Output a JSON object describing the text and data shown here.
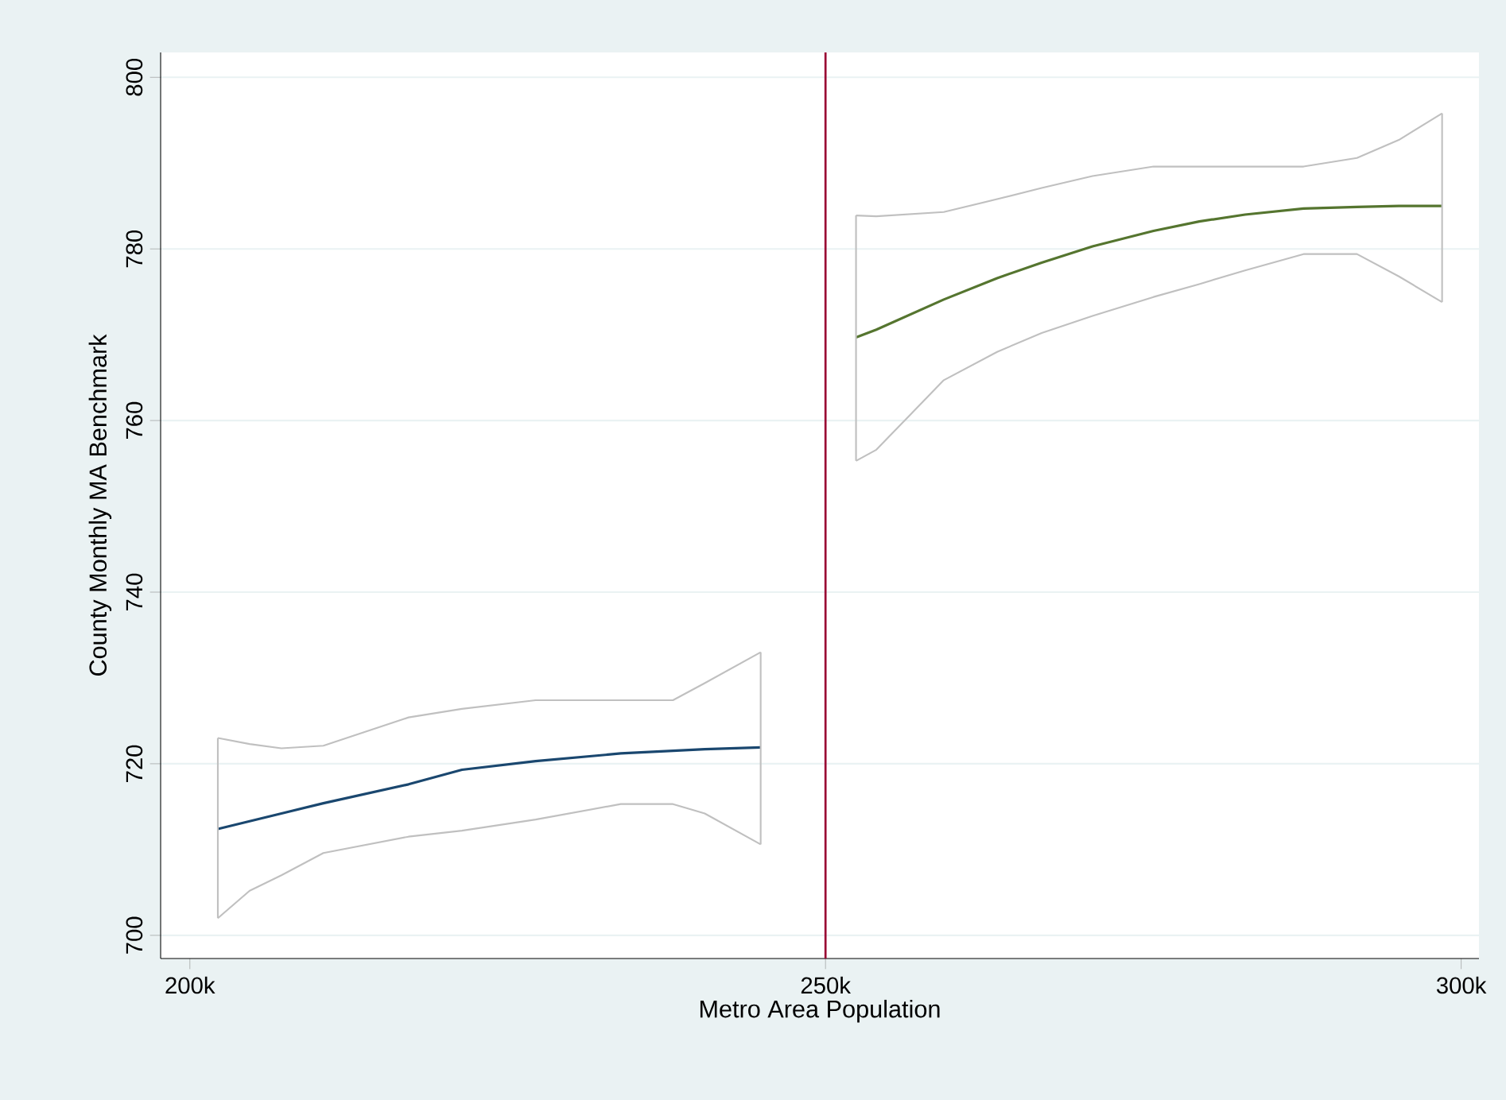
{
  "chart_data": {
    "type": "line",
    "xlabel": "Metro Area Population",
    "ylabel": "County Monthly MA Benchmark",
    "series": [
      {
        "color": "#c0c0c0",
        "x": [
          202200,
          204700,
          207200,
          210500,
          217200,
          221400,
          227200,
          233900,
          238000,
          240500,
          244900
        ],
        "values": [
          723.0,
          722.3,
          721.8,
          722.1,
          725.4,
          726.4,
          727.4,
          727.4,
          727.4,
          729.4,
          733.0
        ]
      },
      {
        "color": "#1a476f",
        "x": [
          202200,
          204700,
          207200,
          210500,
          217200,
          221400,
          227200,
          233900,
          238000,
          240500,
          244900
        ],
        "values": [
          712.4,
          713.3,
          714.2,
          715.4,
          717.6,
          719.3,
          720.3,
          721.2,
          721.5,
          721.7,
          721.9
        ],
        "errors": [
          [
            702.0,
            723.0
          ],
          null,
          null,
          null,
          null,
          null,
          null,
          null,
          null,
          null,
          [
            710.6,
            733.0
          ]
        ]
      },
      {
        "color": "#c0c0c0",
        "x": [
          202200,
          204700,
          207200,
          210500,
          217200,
          221400,
          227200,
          233900,
          238000,
          240500,
          244900
        ],
        "values": [
          702.0,
          705.2,
          707.0,
          709.6,
          711.5,
          712.2,
          713.5,
          715.3,
          715.3,
          714.2,
          710.6
        ]
      },
      {
        "color": "#c0c0c0",
        "x": [
          252400,
          254000,
          259300,
          263500,
          267000,
          271000,
          275800,
          279400,
          283000,
          287600,
          291800,
          295100,
          298500
        ],
        "values": [
          783.9,
          783.8,
          784.3,
          785.8,
          787.1,
          788.5,
          789.6,
          789.6,
          789.6,
          789.6,
          790.6,
          792.7,
          795.8
        ]
      },
      {
        "color": "#55752f",
        "x": [
          252400,
          254000,
          259300,
          263500,
          267000,
          271000,
          275800,
          279400,
          283000,
          287600,
          291800,
          295100,
          298500
        ],
        "values": [
          769.7,
          770.6,
          774.1,
          776.6,
          778.4,
          780.3,
          782.1,
          783.2,
          784.0,
          784.7,
          784.9,
          785.0,
          785.0
        ],
        "errors": [
          [
            755.3,
            783.9
          ],
          null,
          null,
          null,
          null,
          null,
          null,
          null,
          null,
          null,
          null,
          null,
          [
            773.8,
            795.8
          ]
        ]
      },
      {
        "color": "#c0c0c0",
        "x": [
          252400,
          254000,
          259300,
          263500,
          267000,
          271000,
          275800,
          279400,
          283000,
          287600,
          291800,
          295100,
          298500
        ],
        "values": [
          755.3,
          756.6,
          764.7,
          768.0,
          770.2,
          772.2,
          774.4,
          775.9,
          777.5,
          779.4,
          779.4,
          776.8,
          773.8
        ]
      }
    ],
    "xlim": [
      197700,
      301400
    ],
    "ylim": [
      697.3,
      802.9
    ],
    "xticks": [
      {
        "value": 200000,
        "label": "200k"
      },
      {
        "value": 250000,
        "label": "250k"
      },
      {
        "value": 300000,
        "label": "300k"
      }
    ],
    "yticks": [
      700,
      720,
      740,
      760,
      780,
      800
    ],
    "grid": "y",
    "ref_lines": [
      {
        "axis": "x",
        "value": 250000,
        "color": "#990033"
      }
    ]
  }
}
